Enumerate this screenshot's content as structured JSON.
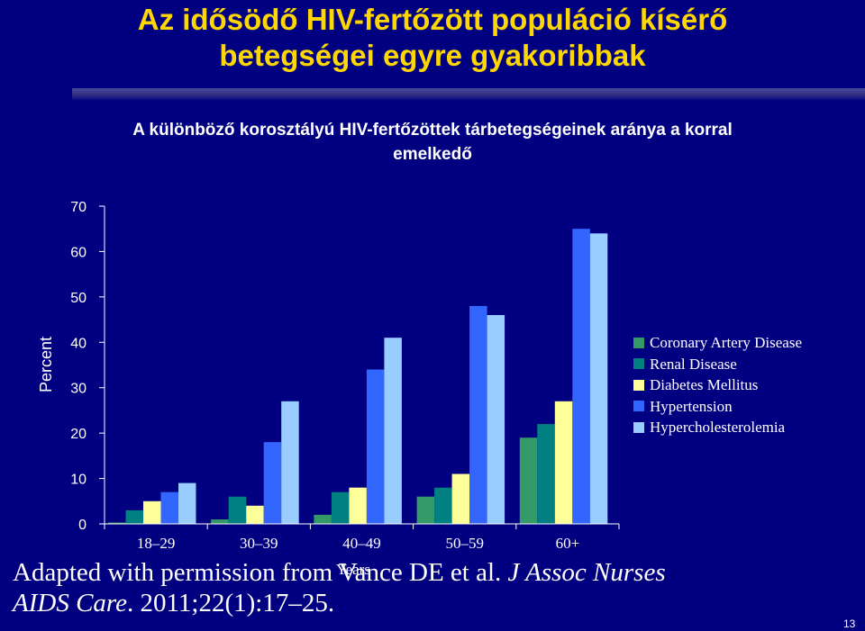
{
  "slide": {
    "title_line1": "Az idősödő HIV-fertőzött populáció kísérő",
    "title_line2": "betegségei egyre gyakoribbak",
    "subtitle_line1": "A különböző korosztályú HIV-fertőzöttek tárbetegségeinek aránya a korral",
    "subtitle_line2": "emelkedő",
    "citation_line1": "Adapted with permission from Vance DE et al.",
    "citation_journal": "J Assoc Nurses",
    "citation_line2_italic": "AIDS Care",
    "citation_line2_rest": ". 2011;22(1):17–25.",
    "page_number": "13"
  },
  "chart_data": {
    "type": "bar",
    "categories": [
      "18–29",
      "30–39",
      "40–49",
      "50–59",
      "60+"
    ],
    "series": [
      {
        "name": "Coronary Artery Disease",
        "color": "#339966",
        "values": [
          0.3,
          1,
          2,
          6,
          19
        ]
      },
      {
        "name": "Renal Disease",
        "color": "#008080",
        "values": [
          3,
          6,
          7,
          8,
          22
        ]
      },
      {
        "name": "Diabetes Mellitus",
        "color": "#FFFF99",
        "values": [
          5,
          4,
          8,
          11,
          27
        ]
      },
      {
        "name": "Hypertension",
        "color": "#3366FF",
        "values": [
          7,
          18,
          34,
          48,
          65
        ]
      },
      {
        "name": "Hypercholesterolemia",
        "color": "#99CCFF",
        "values": [
          9,
          27,
          41,
          46,
          64
        ]
      }
    ],
    "ylabel": "Percent",
    "xlabel": "Years",
    "ylim": [
      0,
      70
    ],
    "yticks": [
      0,
      10,
      20,
      30,
      40,
      50,
      60,
      70
    ],
    "legend_position": "right",
    "grid": false
  }
}
